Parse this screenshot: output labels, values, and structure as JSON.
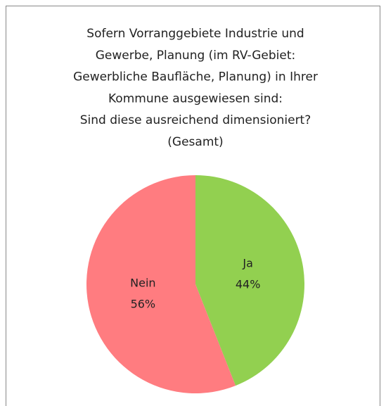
{
  "chart_data": {
    "type": "pie",
    "title": [
      "Sofern Vorranggebiete Industrie und",
      "Gewerbe, Planung (im RV-Gebiet:",
      "Gewerbliche Baufläche, Planung) in Ihrer",
      "Kommune ausgewiesen sind:",
      "Sind diese ausreichend dimensioniert?",
      "(Gesamt)"
    ],
    "categories": [
      "Ja",
      "Nein"
    ],
    "values": [
      44,
      56
    ],
    "value_labels": [
      "44%",
      "56%"
    ],
    "colors": [
      "#92d050",
      "#ff7c80"
    ]
  }
}
